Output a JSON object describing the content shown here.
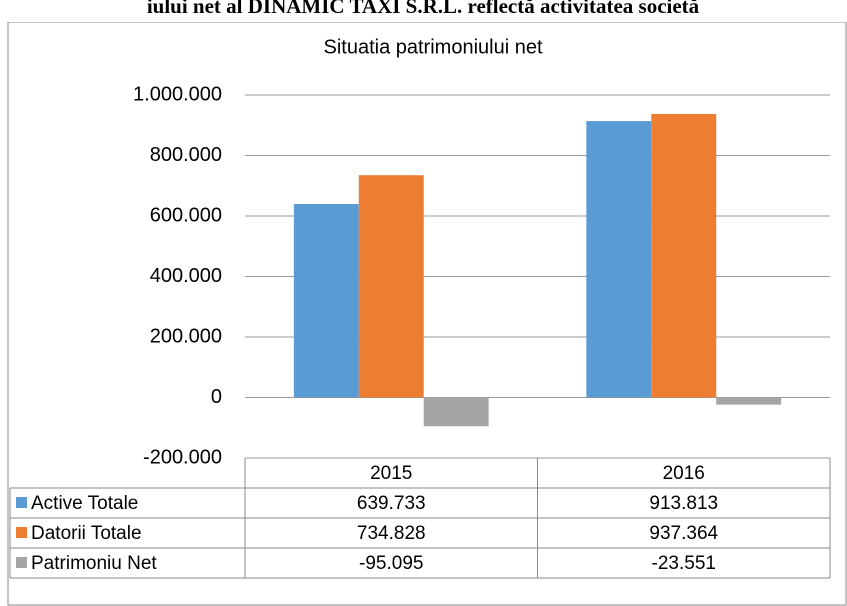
{
  "caption": "iului net al DINAMIC TAXI S.R.L. reflectă activitatea societă",
  "chart_data": {
    "type": "bar",
    "title": "Situatia patrimoniului net",
    "categories": [
      "2015",
      "2016"
    ],
    "series": [
      {
        "name": "Active Totale",
        "color": "#5b9bd5",
        "values": [
          639733,
          913813
        ],
        "value_labels": [
          "639.733",
          "913.813"
        ]
      },
      {
        "name": "Datorii Totale",
        "color": "#ed7d31",
        "values": [
          734828,
          937364
        ],
        "value_labels": [
          "734.828",
          "937.364"
        ]
      },
      {
        "name": "Patrimoniu Net",
        "color": "#a5a5a5",
        "values": [
          -95095,
          -23551
        ],
        "value_labels": [
          "-95.095",
          "-23.551"
        ]
      }
    ],
    "ylim": [
      -200000,
      1000000
    ],
    "yticks": [
      {
        "value": -200000,
        "label": "-200.000"
      },
      0,
      {
        "value": 200000,
        "label": "200.000"
      },
      {
        "value": 400000,
        "label": "400.000"
      },
      {
        "value": 600000,
        "label": "600.000"
      },
      {
        "value": 800000,
        "label": "800.000"
      },
      {
        "value": 1000000,
        "label": "1.000.000"
      }
    ],
    "grid": true,
    "legend": "table"
  }
}
